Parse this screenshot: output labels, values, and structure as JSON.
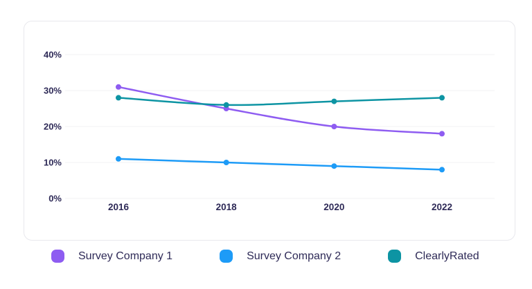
{
  "page": {
    "background_color": "#ffffff",
    "text_color": "#2e2a57"
  },
  "card": {
    "background_color": "#ffffff",
    "border_color": "#e8e8ed"
  },
  "chart_data": {
    "type": "line",
    "title": "",
    "categories": [
      "2016",
      "2018",
      "2020",
      "2022"
    ],
    "series": [
      {
        "name": "Survey Company 1",
        "color": "#8e5cf1",
        "values": [
          31,
          25,
          20,
          18
        ]
      },
      {
        "name": "Survey Company 2",
        "color": "#1d9bf7",
        "values": [
          11,
          10,
          9,
          8
        ]
      },
      {
        "name": "ClearlyRated",
        "color": "#0d94a3",
        "values": [
          28,
          26,
          27,
          28
        ]
      }
    ],
    "xlabel": "",
    "ylabel": "",
    "y_axis": {
      "range": [
        0,
        40
      ],
      "ticks": [
        0,
        10,
        20,
        30,
        40
      ],
      "tick_labels": [
        "0%",
        "10%",
        "20%",
        "30%",
        "40%"
      ]
    },
    "grid": "horizontal",
    "grid_color": "#f0f0f3",
    "legend_position": "bottom",
    "line_smoothing": true
  }
}
